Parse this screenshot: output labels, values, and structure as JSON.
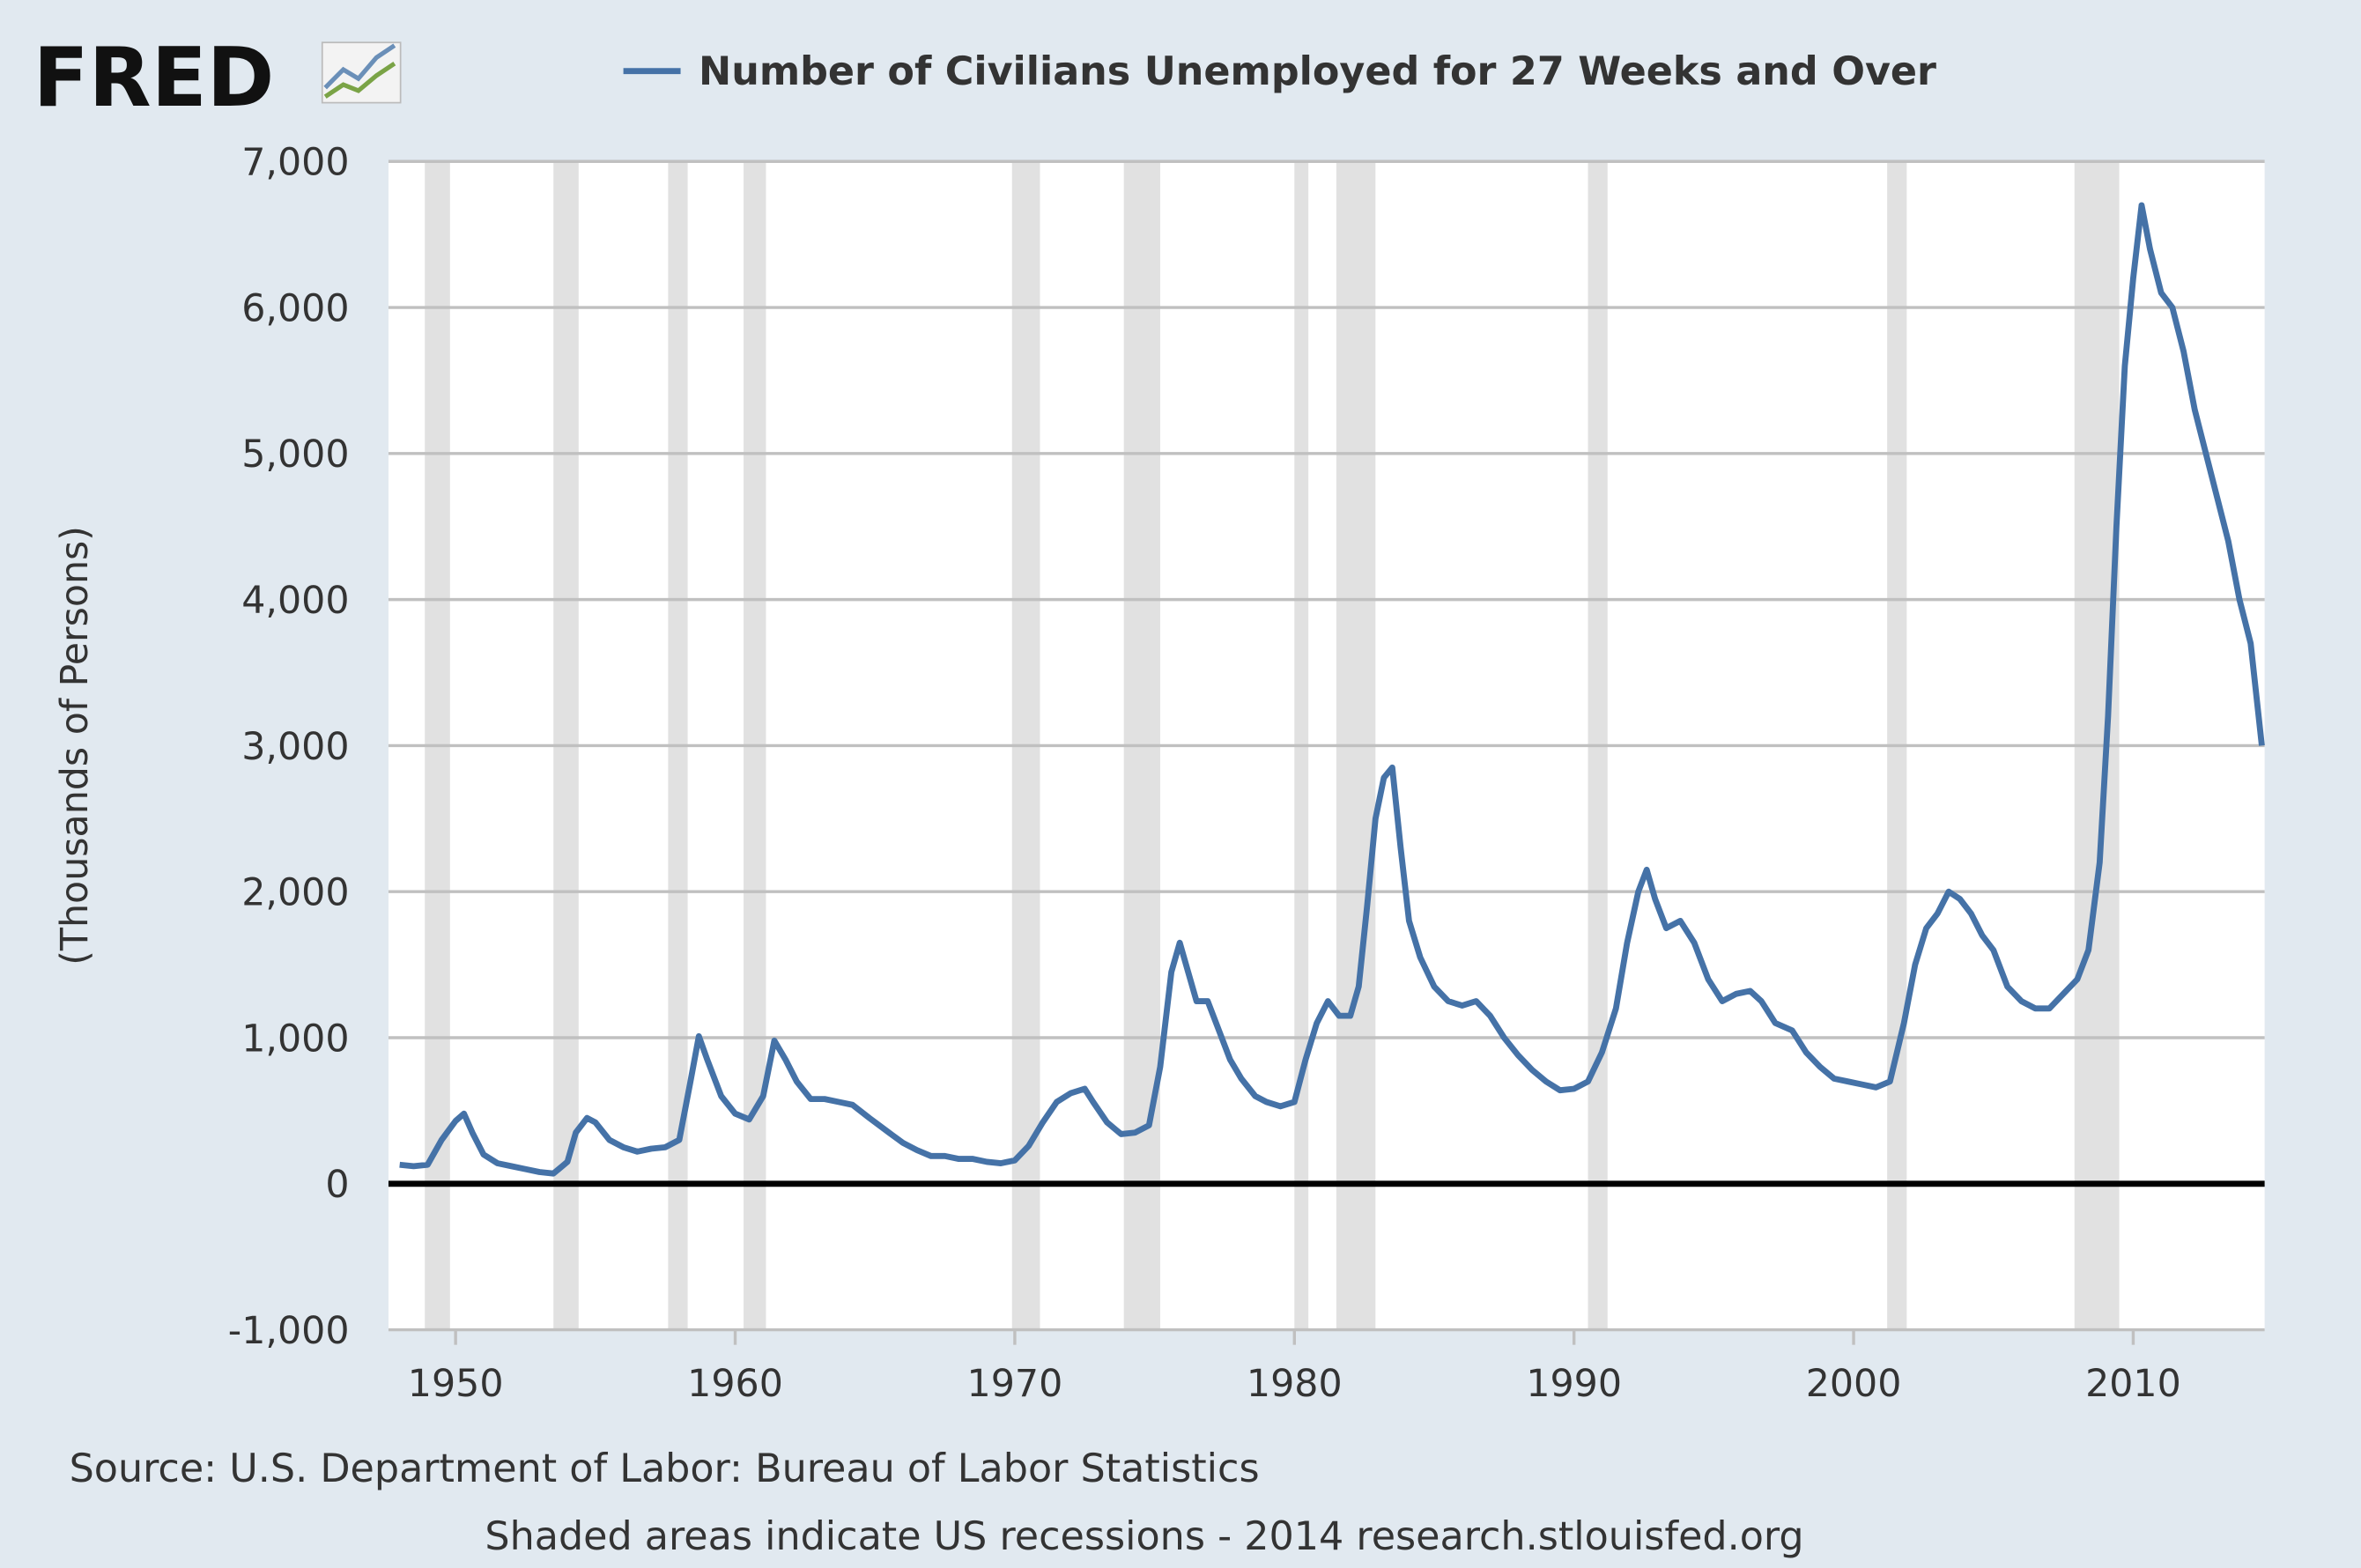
{
  "chart_data": {
    "type": "line",
    "logo": "FRED",
    "title": "Number of Civilians Unemployed for 27 Weeks and Over",
    "ylabel": "(Thousands of Persons)",
    "source": "Source: U.S. Department of Labor: Bureau of Labor Statistics",
    "note": "Shaded areas indicate US recessions - 2014 research.stlouisfed.org",
    "x": [
      1948.0,
      1948.5,
      1949.0,
      1949.5,
      1950.0,
      1950.3,
      1950.6,
      1951.0,
      1951.5,
      1952.0,
      1952.5,
      1953.0,
      1953.5,
      1954.0,
      1954.3,
      1954.7,
      1955.0,
      1955.5,
      1956.0,
      1956.5,
      1957.0,
      1957.5,
      1958.0,
      1958.4,
      1958.7,
      1959.0,
      1959.5,
      1960.0,
      1960.5,
      1961.0,
      1961.4,
      1961.8,
      1962.2,
      1962.7,
      1963.2,
      1963.7,
      1964.2,
      1964.8,
      1965.5,
      1966.0,
      1966.5,
      1967.0,
      1967.5,
      1968.0,
      1968.5,
      1969.0,
      1969.5,
      1970.0,
      1970.5,
      1971.0,
      1971.5,
      1972.0,
      1972.5,
      1972.8,
      1973.3,
      1973.8,
      1974.3,
      1974.8,
      1975.2,
      1975.6,
      1975.9,
      1976.2,
      1976.5,
      1976.9,
      1977.3,
      1977.7,
      1978.1,
      1978.6,
      1979.0,
      1979.5,
      1980.0,
      1980.4,
      1980.8,
      1981.2,
      1981.6,
      1982.0,
      1982.3,
      1982.6,
      1982.9,
      1983.2,
      1983.5,
      1983.8,
      1984.1,
      1984.5,
      1985.0,
      1985.5,
      1986.0,
      1986.5,
      1987.0,
      1987.5,
      1988.0,
      1988.5,
      1989.0,
      1989.5,
      1990.0,
      1990.5,
      1991.0,
      1991.5,
      1991.9,
      1992.3,
      1992.6,
      1992.9,
      1993.3,
      1993.8,
      1994.3,
      1994.8,
      1995.3,
      1995.8,
      1996.3,
      1996.7,
      1997.2,
      1997.8,
      1998.3,
      1998.8,
      1999.3,
      1999.8,
      2000.3,
      2000.8,
      2001.3,
      2001.8,
      2002.2,
      2002.6,
      2003.0,
      2003.4,
      2003.8,
      2004.2,
      2004.6,
      2005.0,
      2005.5,
      2006.0,
      2006.5,
      2007.0,
      2007.5,
      2008.0,
      2008.4,
      2008.8,
      2009.1,
      2009.4,
      2009.7,
      2010.0,
      2010.3,
      2010.6,
      2011.0,
      2011.4,
      2011.8,
      2012.2,
      2012.6,
      2013.0,
      2013.4,
      2013.8,
      2014.2,
      2014.6
    ],
    "series": [
      {
        "name": "Number of Civilians Unemployed for 27 Weeks and Over",
        "color": "#4572a7",
        "values": [
          130,
          120,
          130,
          300,
          430,
          480,
          350,
          200,
          140,
          120,
          100,
          80,
          70,
          150,
          350,
          450,
          420,
          300,
          250,
          220,
          240,
          250,
          300,
          700,
          1010,
          850,
          600,
          480,
          440,
          600,
          980,
          850,
          700,
          580,
          580,
          560,
          540,
          450,
          350,
          280,
          230,
          190,
          190,
          170,
          170,
          150,
          140,
          160,
          260,
          420,
          560,
          620,
          650,
          560,
          420,
          340,
          350,
          400,
          800,
          1450,
          1650,
          1450,
          1250,
          1250,
          1050,
          850,
          720,
          600,
          560,
          530,
          560,
          850,
          1100,
          1250,
          1150,
          1150,
          1350,
          1900,
          2500,
          2780,
          2850,
          2300,
          1800,
          1550,
          1350,
          1250,
          1220,
          1250,
          1150,
          1000,
          880,
          780,
          700,
          640,
          650,
          700,
          900,
          1200,
          1650,
          2000,
          2150,
          1950,
          1750,
          1800,
          1650,
          1400,
          1250,
          1300,
          1320,
          1250,
          1100,
          1050,
          900,
          800,
          720,
          700,
          680,
          660,
          700,
          1100,
          1500,
          1750,
          1850,
          2000,
          1950,
          1850,
          1700,
          1600,
          1350,
          1250,
          1200,
          1200,
          1300,
          1400,
          1600,
          2200,
          3200,
          4500,
          5600,
          6200,
          6700,
          6400,
          6100,
          6000,
          5700,
          5300,
          5000,
          4700,
          4400,
          4000,
          3700,
          3000
        ]
      }
    ],
    "recessions": [
      {
        "start": 1948.9,
        "end": 1949.8
      },
      {
        "start": 1953.5,
        "end": 1954.4
      },
      {
        "start": 1957.6,
        "end": 1958.3
      },
      {
        "start": 1960.3,
        "end": 1961.1
      },
      {
        "start": 1969.9,
        "end": 1970.9
      },
      {
        "start": 1973.9,
        "end": 1975.2
      },
      {
        "start": 1980.0,
        "end": 1980.5
      },
      {
        "start": 1981.5,
        "end": 1982.9
      },
      {
        "start": 1990.5,
        "end": 1991.2
      },
      {
        "start": 2001.2,
        "end": 2001.9
      },
      {
        "start": 2007.9,
        "end": 2009.5
      }
    ],
    "recession_color": "#e1e1e1",
    "xlim": [
      1947.6,
      2014.7
    ],
    "xticks": [
      1950,
      1960,
      1970,
      1980,
      1990,
      2000,
      2010
    ],
    "ylim": [
      -1000,
      7000
    ],
    "yticks": [
      {
        "value": -1000,
        "label": "-1,000"
      },
      0,
      {
        "value": 1000,
        "label": "1,000"
      },
      {
        "value": 2000,
        "label": "2,000"
      },
      {
        "value": 3000,
        "label": "3,000"
      },
      {
        "value": 4000,
        "label": "4,000"
      },
      {
        "value": 5000,
        "label": "5,000"
      },
      {
        "value": 6000,
        "label": "6,000"
      },
      {
        "value": 7000,
        "label": "7,000"
      }
    ],
    "grid": true
  }
}
